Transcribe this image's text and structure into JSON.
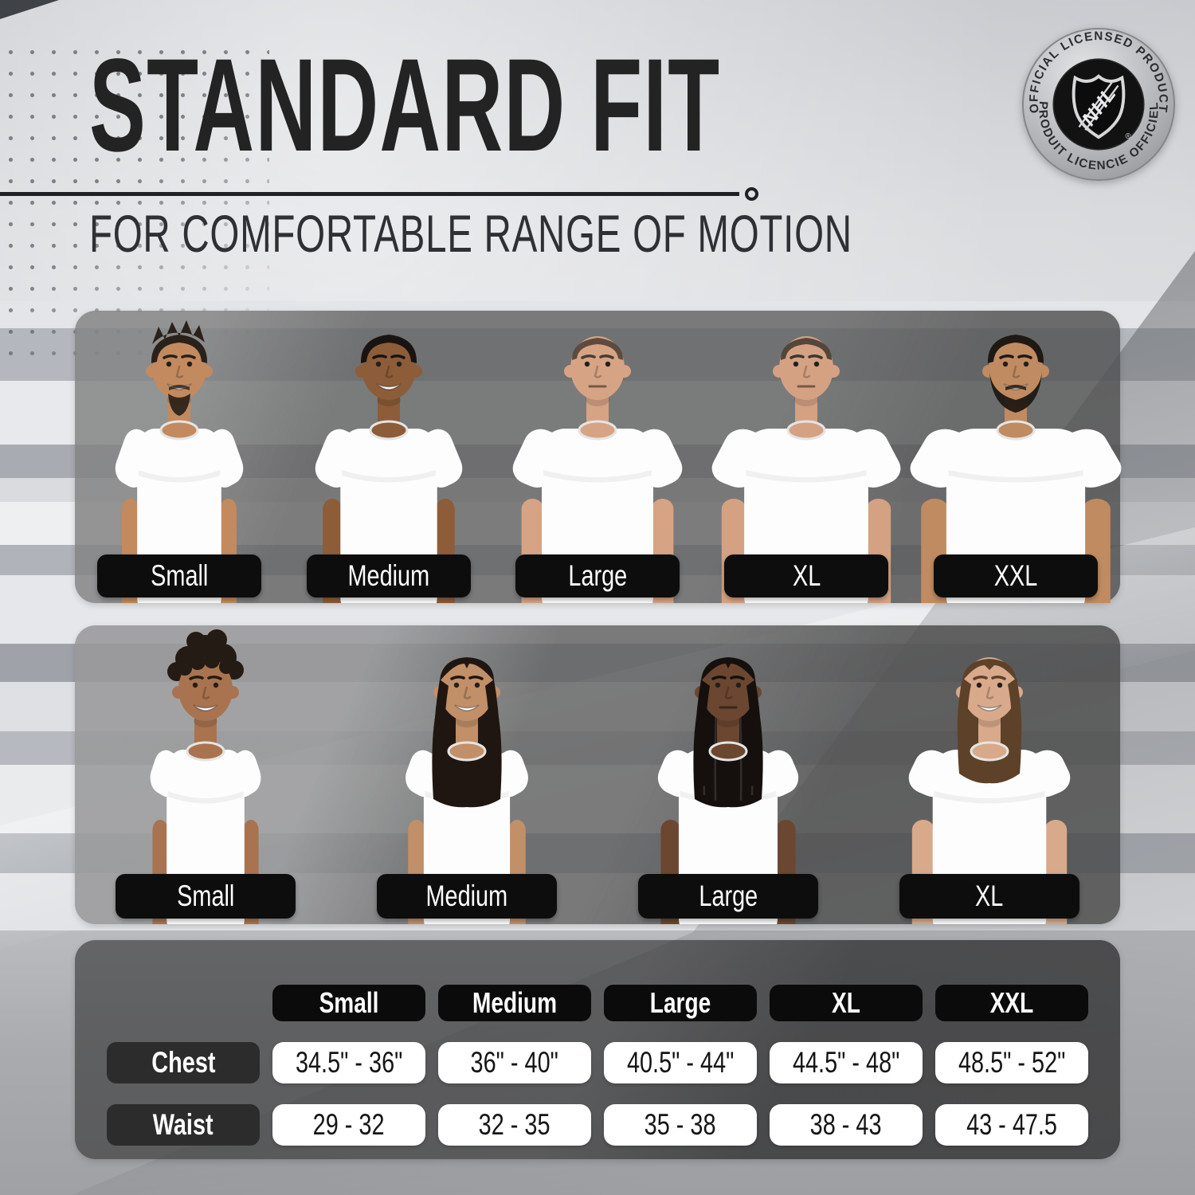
{
  "header": {
    "title": "STANDARD FIT",
    "subtitle": "FOR COMFORTABLE RANGE OF MOTION"
  },
  "badge": {
    "top_text": "OFFICIAL LICENSED PRODUCT",
    "bottom_text": "PRODUIT LICENCIE OFFICIEL",
    "center_text": "NHL",
    "registered_mark": "®"
  },
  "men_sizes": [
    {
      "label": "Small",
      "appearance": {
        "skin": "#c28a5e",
        "hair": "#2a211a",
        "hair_style": "spiky",
        "facial_hair": "goatee",
        "build": 0.8,
        "expression": "smile"
      }
    },
    {
      "label": "Medium",
      "appearance": {
        "skin": "#8d5c39",
        "hair": "#191411",
        "hair_style": "short",
        "facial_hair": "none",
        "build": 0.92,
        "expression": "smile"
      }
    },
    {
      "label": "Large",
      "appearance": {
        "skin": "#d7a385",
        "hair": "#4a3c31",
        "hair_style": "buzz",
        "facial_hair": "none",
        "build": 1.06,
        "expression": "neutral"
      }
    },
    {
      "label": "XL",
      "appearance": {
        "skin": "#d5a183",
        "hair": "#3e362e",
        "hair_style": "buzz",
        "facial_hair": "none",
        "build": 1.18,
        "expression": "neutral"
      }
    },
    {
      "label": "XXL",
      "appearance": {
        "skin": "#c08b60",
        "hair": "#1f1914",
        "hair_style": "short",
        "facial_hair": "full",
        "build": 1.32,
        "expression": "smile"
      }
    }
  ],
  "women_sizes": [
    {
      "label": "Small",
      "appearance": {
        "skin": "#a97350",
        "hair": "#241b14",
        "hair_style": "curly",
        "facial_hair": "none",
        "build": 0.74,
        "expression": "smile"
      }
    },
    {
      "label": "Medium",
      "appearance": {
        "skin": "#c18f68",
        "hair": "#201611",
        "hair_style": "long",
        "facial_hair": "none",
        "build": 0.82,
        "expression": "smile"
      }
    },
    {
      "label": "Large",
      "appearance": {
        "skin": "#6b4631",
        "hair": "#15100d",
        "hair_style": "braids",
        "facial_hair": "none",
        "build": 0.94,
        "expression": "neutral"
      }
    },
    {
      "label": "XL",
      "appearance": {
        "skin": "#d8a98b",
        "hair": "#5d4128",
        "hair_style": "bob",
        "facial_hair": "none",
        "build": 1.08,
        "expression": "smile"
      }
    }
  ],
  "size_table": {
    "type": "table",
    "columns": [
      "Small",
      "Medium",
      "Large",
      "XL",
      "XXL"
    ],
    "rows": [
      {
        "label": "Chest",
        "values": [
          "34.5\" - 36\"",
          "36\" - 40\"",
          "40.5\" - 44\"",
          "44.5\" - 48\"",
          "48.5\" - 52\""
        ]
      },
      {
        "label": "Waist",
        "values": [
          "29 - 32",
          "32 - 35",
          "35 - 38",
          "38 - 43",
          "43 - 47.5"
        ]
      }
    ]
  },
  "colors": {
    "pill_black": "#0d0d0d",
    "pill_white": "#ffffff",
    "title_ink": "#232323",
    "background_silver": "#d4d6d9",
    "panel_gray": "rgba(95,95,95,0.8)"
  }
}
